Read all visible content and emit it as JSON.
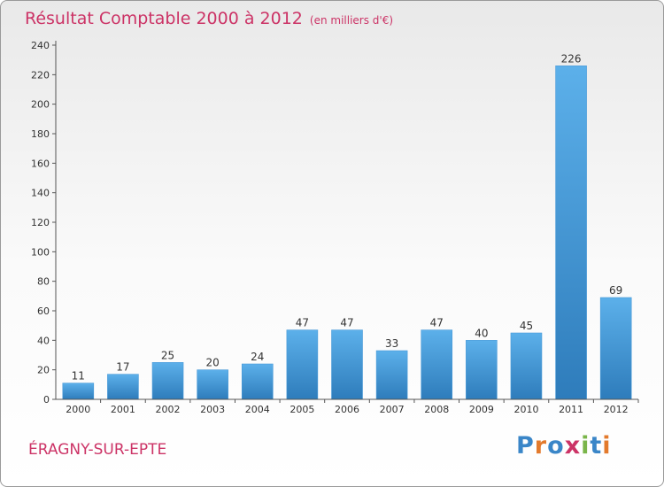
{
  "title": "Résultat Comptable 2000 à 2012",
  "subtitle": "(en milliers d'€)",
  "town": "ÉRAGNY-SUR-EPTE",
  "logo": {
    "text": "Proxiti",
    "letter_colors": [
      "#3a86c8",
      "#e37a2c",
      "#3a86c8",
      "#cc3366",
      "#7ab54a",
      "#3a86c8",
      "#e37a2c"
    ]
  },
  "colors": {
    "title": "#cc3366",
    "bar_light": "#5cb0ea",
    "bar_dark": "#2e7cbb",
    "axis": "#555555"
  },
  "chart_data": {
    "type": "bar",
    "title": "Résultat Comptable 2000 à 2012",
    "subtitle": "(en milliers d'€)",
    "categories": [
      "2000",
      "2001",
      "2002",
      "2003",
      "2004",
      "2005",
      "2006",
      "2007",
      "2008",
      "2009",
      "2010",
      "2011",
      "2012"
    ],
    "values": [
      11,
      17,
      25,
      20,
      24,
      47,
      47,
      33,
      47,
      40,
      45,
      226,
      69
    ],
    "ylim": [
      0,
      240
    ],
    "yticks": [
      0,
      20,
      40,
      60,
      80,
      100,
      120,
      140,
      160,
      180,
      200,
      220,
      240
    ],
    "grid": false,
    "data_labels": true
  }
}
